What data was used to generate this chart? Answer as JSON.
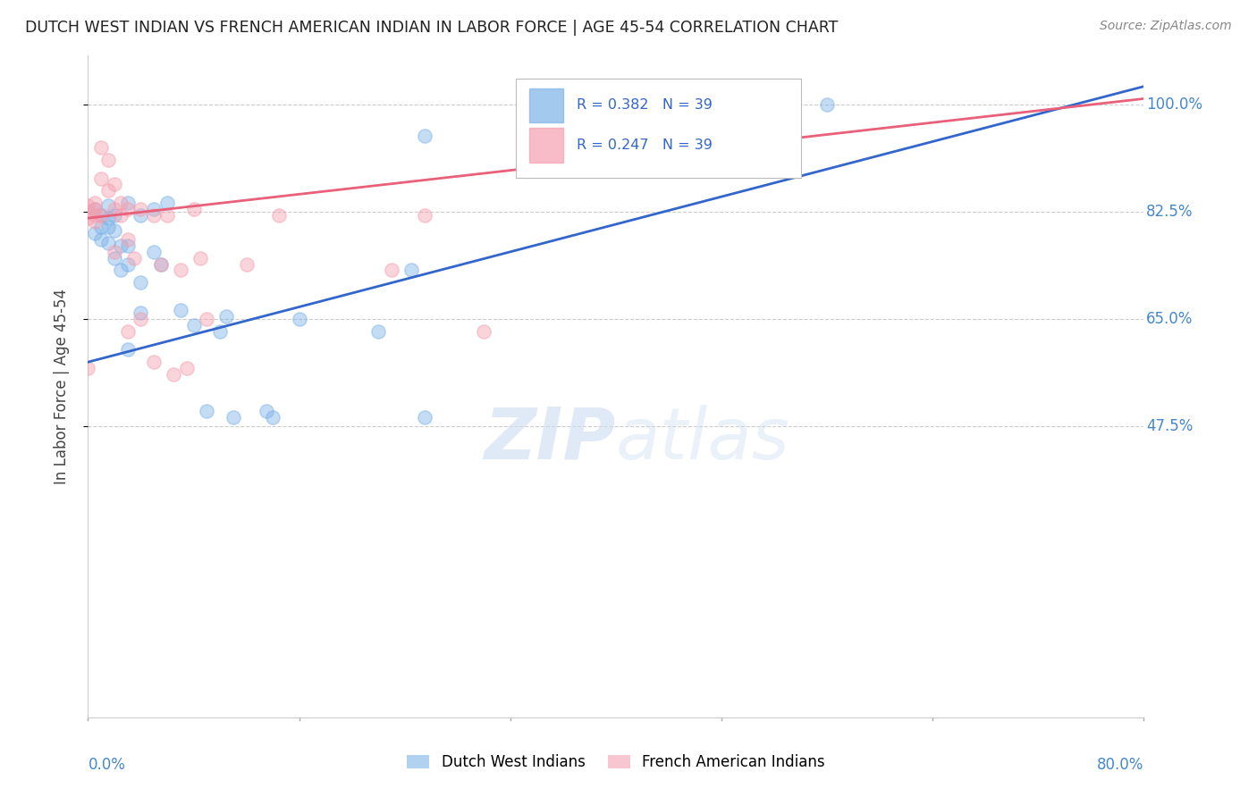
{
  "title": "DUTCH WEST INDIAN VS FRENCH AMERICAN INDIAN IN LABOR FORCE | AGE 45-54 CORRELATION CHART",
  "source": "Source: ZipAtlas.com",
  "ylabel": "In Labor Force | Age 45-54",
  "y_ticks": [
    0.475,
    0.65,
    0.825,
    1.0
  ],
  "y_tick_labels": [
    "47.5%",
    "65.0%",
    "82.5%",
    "100.0%"
  ],
  "xlim": [
    0.0,
    0.8
  ],
  "ylim": [
    0.0,
    1.08
  ],
  "blue_r": 0.382,
  "blue_n": 39,
  "pink_r": 0.247,
  "pink_n": 39,
  "legend_label_blue": "Dutch West Indians",
  "legend_label_pink": "French American Indians",
  "blue_color": "#7EB3E8",
  "pink_color": "#F4A0B0",
  "blue_line_color": "#3366CC",
  "pink_line_color": "#E8607A",
  "watermark_zip": "ZIP",
  "watermark_atlas": "atlas",
  "blue_scatter_x": [
    0.005,
    0.005,
    0.01,
    0.01,
    0.01,
    0.015,
    0.015,
    0.015,
    0.015,
    0.02,
    0.02,
    0.02,
    0.025,
    0.025,
    0.03,
    0.03,
    0.03,
    0.03,
    0.04,
    0.04,
    0.04,
    0.05,
    0.05,
    0.055,
    0.06,
    0.07,
    0.08,
    0.09,
    0.1,
    0.105,
    0.11,
    0.135,
    0.14,
    0.16,
    0.22,
    0.245,
    0.255,
    0.255,
    0.56
  ],
  "blue_scatter_y": [
    0.83,
    0.79,
    0.82,
    0.8,
    0.78,
    0.835,
    0.815,
    0.8,
    0.775,
    0.82,
    0.795,
    0.75,
    0.77,
    0.73,
    0.84,
    0.77,
    0.74,
    0.6,
    0.82,
    0.71,
    0.66,
    0.83,
    0.76,
    0.74,
    0.84,
    0.665,
    0.64,
    0.5,
    0.63,
    0.655,
    0.49,
    0.5,
    0.49,
    0.65,
    0.63,
    0.73,
    0.49,
    0.95,
    1.0
  ],
  "pink_scatter_x": [
    0.0,
    0.0,
    0.0,
    0.0,
    0.005,
    0.005,
    0.005,
    0.005,
    0.01,
    0.01,
    0.01,
    0.015,
    0.015,
    0.02,
    0.02,
    0.02,
    0.025,
    0.025,
    0.03,
    0.03,
    0.03,
    0.035,
    0.04,
    0.04,
    0.05,
    0.055,
    0.06,
    0.07,
    0.075,
    0.08,
    0.085,
    0.09,
    0.12,
    0.145,
    0.23,
    0.255,
    0.3,
    0.05,
    0.065
  ],
  "pink_scatter_y": [
    0.835,
    0.825,
    0.815,
    0.57,
    0.84,
    0.83,
    0.82,
    0.81,
    0.93,
    0.88,
    0.82,
    0.91,
    0.86,
    0.87,
    0.83,
    0.76,
    0.84,
    0.82,
    0.83,
    0.78,
    0.63,
    0.75,
    0.83,
    0.65,
    0.82,
    0.74,
    0.82,
    0.73,
    0.57,
    0.83,
    0.75,
    0.65,
    0.74,
    0.82,
    0.73,
    0.82,
    0.63,
    0.58,
    0.56
  ],
  "blue_line_x0": 0.0,
  "blue_line_x1": 0.8,
  "blue_line_y0": 0.58,
  "blue_line_y1": 1.03,
  "pink_line_x0": 0.0,
  "pink_line_x1": 0.8,
  "pink_line_y0": 0.815,
  "pink_line_y1": 1.01,
  "background_color": "#ffffff",
  "grid_color": "#cccccc",
  "title_color": "#222222",
  "tick_color": "#4488CC",
  "marker_size": 120,
  "marker_alpha": 0.45,
  "marker_edge_alpha": 0.7
}
